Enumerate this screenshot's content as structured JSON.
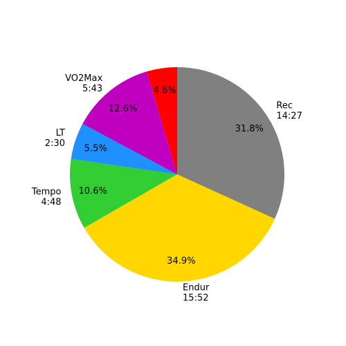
{
  "chart_data": {
    "type": "pie",
    "categories": [
      "Rec",
      "Endur",
      "Tempo",
      "LT",
      "VO2Max",
      null
    ],
    "durations": [
      "14:27",
      "15:52",
      "4:48",
      "2:30",
      "5:43",
      null
    ],
    "values": [
      31.8,
      34.9,
      10.6,
      5.5,
      12.6,
      4.6
    ],
    "value_labels": [
      "31.8%",
      "34.9%",
      "10.6%",
      "5.5%",
      "12.6%",
      "4.6%"
    ],
    "colors": [
      "#808080",
      "#ffd700",
      "#32cd32",
      "#1e90ff",
      "#bf00bf",
      "#ff0000"
    ]
  }
}
